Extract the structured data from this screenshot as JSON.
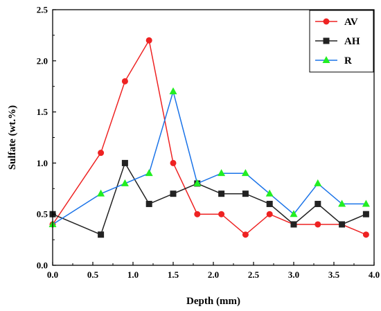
{
  "chart_data": {
    "type": "line",
    "title": "",
    "xlabel": "Depth (mm)",
    "ylabel": "Sulfate (wt.%)",
    "xlim": [
      0.0,
      4.0
    ],
    "ylim": [
      0.0,
      2.5
    ],
    "xticks": [
      "0.0",
      "0.5",
      "1.0",
      "1.5",
      "2.0",
      "2.5",
      "3.0",
      "3.5",
      "4.0"
    ],
    "yticks": [
      "0.0",
      "0.5",
      "1.0",
      "1.5",
      "2.0",
      "2.5"
    ],
    "grid": false,
    "legend_position": "top-right",
    "series": [
      {
        "name": "AV",
        "color": "#ee2222",
        "marker": "circle",
        "x": [
          0.0,
          0.6,
          0.9,
          1.2,
          1.5,
          1.8,
          2.1,
          2.4,
          2.7,
          3.0,
          3.3,
          3.6,
          3.9
        ],
        "y": [
          0.4,
          1.1,
          1.8,
          2.2,
          1.0,
          0.5,
          0.5,
          0.3,
          0.5,
          0.4,
          0.4,
          0.4,
          0.3
        ]
      },
      {
        "name": "AH",
        "color": "#222222",
        "marker": "square",
        "x": [
          0.0,
          0.6,
          0.9,
          1.2,
          1.5,
          1.8,
          2.1,
          2.4,
          2.7,
          3.0,
          3.3,
          3.6,
          3.9
        ],
        "y": [
          0.5,
          0.3,
          1.0,
          0.6,
          0.7,
          0.8,
          0.7,
          0.7,
          0.6,
          0.4,
          0.6,
          0.4,
          0.5
        ]
      },
      {
        "name": "R",
        "color": "#1a73e8",
        "marker": "triangle",
        "marker_color": "#22ee22",
        "x": [
          0.0,
          0.6,
          0.9,
          1.2,
          1.5,
          1.8,
          2.1,
          2.4,
          2.7,
          3.0,
          3.3,
          3.6,
          3.9
        ],
        "y": [
          0.4,
          0.7,
          0.8,
          0.9,
          1.7,
          0.8,
          0.9,
          0.9,
          0.7,
          0.5,
          0.8,
          0.6,
          0.6
        ]
      }
    ]
  }
}
